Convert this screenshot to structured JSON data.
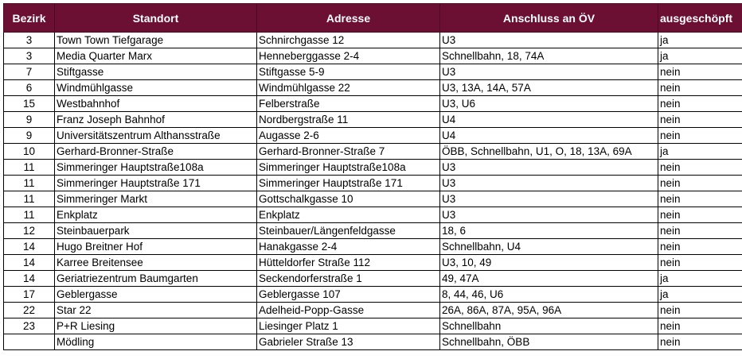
{
  "table": {
    "header": {
      "bezirk": "Bezirk",
      "standort": "Standort",
      "adresse": "Adresse",
      "oev": "Anschluss an ÖV",
      "ausgeschoepft": "ausgeschöpft"
    },
    "rows": [
      {
        "bezirk": "3",
        "standort": "Town Town Tiefgarage",
        "adresse": "Schnirchgasse 12",
        "oev": "U3",
        "ausgeschoepft": "ja"
      },
      {
        "bezirk": "3",
        "standort": "Media Quarter Marx",
        "adresse": "Henneberggasse 2-4",
        "oev": "Schnellbahn, 18, 74A",
        "ausgeschoepft": "ja"
      },
      {
        "bezirk": "7",
        "standort": "Stiftgasse",
        "adresse": "Stiftgasse 5-9",
        "oev": "U3",
        "ausgeschoepft": "nein"
      },
      {
        "bezirk": "6",
        "standort": "Windmühlgasse",
        "adresse": "Windmühlgasse 22",
        "oev": "U3, 13A, 14A, 57A",
        "ausgeschoepft": "nein"
      },
      {
        "bezirk": "15",
        "standort": "Westbahnhof",
        "adresse": "Felberstraße",
        "oev": "U3, U6",
        "ausgeschoepft": "nein"
      },
      {
        "bezirk": "9",
        "standort": "Franz Joseph Bahnhof",
        "adresse": "Nordbergstraße 11",
        "oev": "U4",
        "ausgeschoepft": "nein"
      },
      {
        "bezirk": "9",
        "standort": "Universitätszentrum Althansstraße",
        "adresse": "Augasse 2-6",
        "oev": "U4",
        "ausgeschoepft": "nein"
      },
      {
        "bezirk": "10",
        "standort": "Gerhard-Bronner-Straße",
        "adresse": "Gerhard-Bronner-Straße 7",
        "oev": "ÖBB, Schnellbahn, U1, O, 18, 13A, 69A",
        "ausgeschoepft": "ja"
      },
      {
        "bezirk": "11",
        "standort": "Simmeringer Hauptstraße108a",
        "adresse": "Simmeringer Hauptstraße108a",
        "oev": "U3",
        "ausgeschoepft": "nein"
      },
      {
        "bezirk": "11",
        "standort": "Simmeringer Hauptstraße 171",
        "adresse": "Simmeringer Hauptstraße 171",
        "oev": "U3",
        "ausgeschoepft": "nein"
      },
      {
        "bezirk": "11",
        "standort": "Simmeringer Markt",
        "adresse": "Gottschalkgasse 10",
        "oev": "U3",
        "ausgeschoepft": "nein"
      },
      {
        "bezirk": "11",
        "standort": "Enkplatz",
        "adresse": "Enkplatz",
        "oev": "U3",
        "ausgeschoepft": "nein"
      },
      {
        "bezirk": "12",
        "standort": "Steinbauerpark",
        "adresse": "Steinbauer/Längenfeldgasse",
        "oev": "18, 6",
        "ausgeschoepft": "nein"
      },
      {
        "bezirk": "14",
        "standort": "Hugo Breitner Hof",
        "adresse": "Hanakgasse 2-4",
        "oev": "Schnellbahn, U4",
        "ausgeschoepft": "nein"
      },
      {
        "bezirk": "14",
        "standort": "Karree Breitensee",
        "adresse": "Hütteldorfer Straße 112",
        "oev": "U3, 10, 49",
        "ausgeschoepft": "nein"
      },
      {
        "bezirk": "14",
        "standort": "Geriatriezentrum Baumgarten",
        "adresse": "Seckendorferstraße 1",
        "oev": "49, 47A",
        "ausgeschoepft": "ja"
      },
      {
        "bezirk": "17",
        "standort": "Geblergasse",
        "adresse": "Geblergasse 107",
        "oev": "8, 44, 46, U6",
        "ausgeschoepft": "ja"
      },
      {
        "bezirk": "22",
        "standort": "Star 22",
        "adresse": "Adelheid-Popp-Gasse",
        "oev": "26A, 86A, 87A, 95A, 96A",
        "ausgeschoepft": "nein"
      },
      {
        "bezirk": "23",
        "standort": "P+R Liesing",
        "adresse": "Liesinger Platz 1",
        "oev": "Schnellbahn",
        "ausgeschoepft": "nein"
      },
      {
        "bezirk": "",
        "standort": "Mödling",
        "adresse": "Gabrieler Straße 13",
        "oev": "Schnellbahn, ÖBB",
        "ausgeschoepft": "nein"
      }
    ]
  }
}
